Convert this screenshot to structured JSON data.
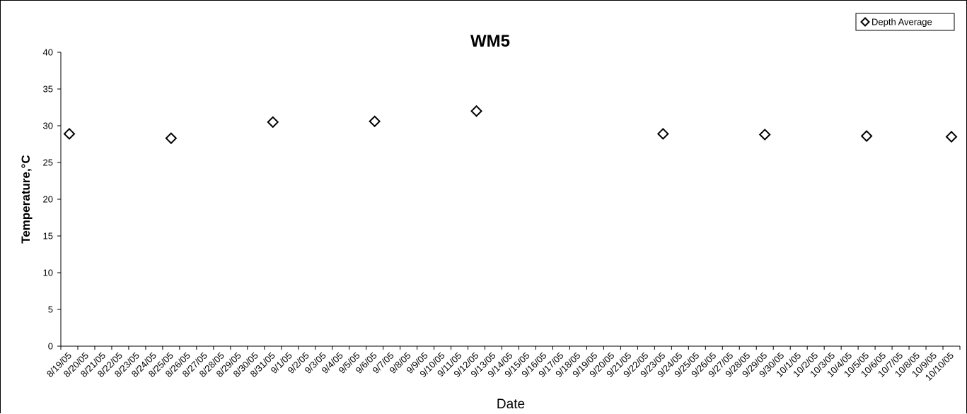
{
  "chart_data": {
    "type": "scatter",
    "title": "WM5",
    "xlabel": "Date",
    "ylabel": "Temperature,°C",
    "ylim": [
      0,
      40
    ],
    "yticks": [
      0,
      5,
      10,
      15,
      20,
      25,
      30,
      35,
      40
    ],
    "categories": [
      "8/19/05",
      "8/20/05",
      "8/21/05",
      "8/22/05",
      "8/23/05",
      "8/24/05",
      "8/25/05",
      "8/26/05",
      "8/27/05",
      "8/28/05",
      "8/29/05",
      "8/30/05",
      "8/31/05",
      "9/1/05",
      "9/2/05",
      "9/3/05",
      "9/4/05",
      "9/5/05",
      "9/6/05",
      "9/7/05",
      "9/8/05",
      "9/9/05",
      "9/10/05",
      "9/11/05",
      "9/12/05",
      "9/13/05",
      "9/14/05",
      "9/15/05",
      "9/16/05",
      "9/17/05",
      "9/18/05",
      "9/19/05",
      "9/20/05",
      "9/21/05",
      "9/22/05",
      "9/23/05",
      "9/24/05",
      "9/25/05",
      "9/26/05",
      "9/27/05",
      "9/28/05",
      "9/29/05",
      "9/30/05",
      "10/1/05",
      "10/2/05",
      "10/3/05",
      "10/4/05",
      "10/5/05",
      "10/6/05",
      "10/7/05",
      "10/8/05",
      "10/9/05",
      "10/10/05"
    ],
    "series": [
      {
        "name": "Depth Average",
        "marker": "diamond-open",
        "points": [
          {
            "x": "8/19/05",
            "y": 28.9
          },
          {
            "x": "8/25/05",
            "y": 28.3
          },
          {
            "x": "8/31/05",
            "y": 30.5
          },
          {
            "x": "9/6/05",
            "y": 30.6
          },
          {
            "x": "9/12/05",
            "y": 32.0
          },
          {
            "x": "9/23/05",
            "y": 28.9
          },
          {
            "x": "9/29/05",
            "y": 28.8
          },
          {
            "x": "10/5/05",
            "y": 28.6
          },
          {
            "x": "10/10/05",
            "y": 28.5
          }
        ]
      }
    ],
    "grid": false,
    "legend_position": "top-right"
  }
}
